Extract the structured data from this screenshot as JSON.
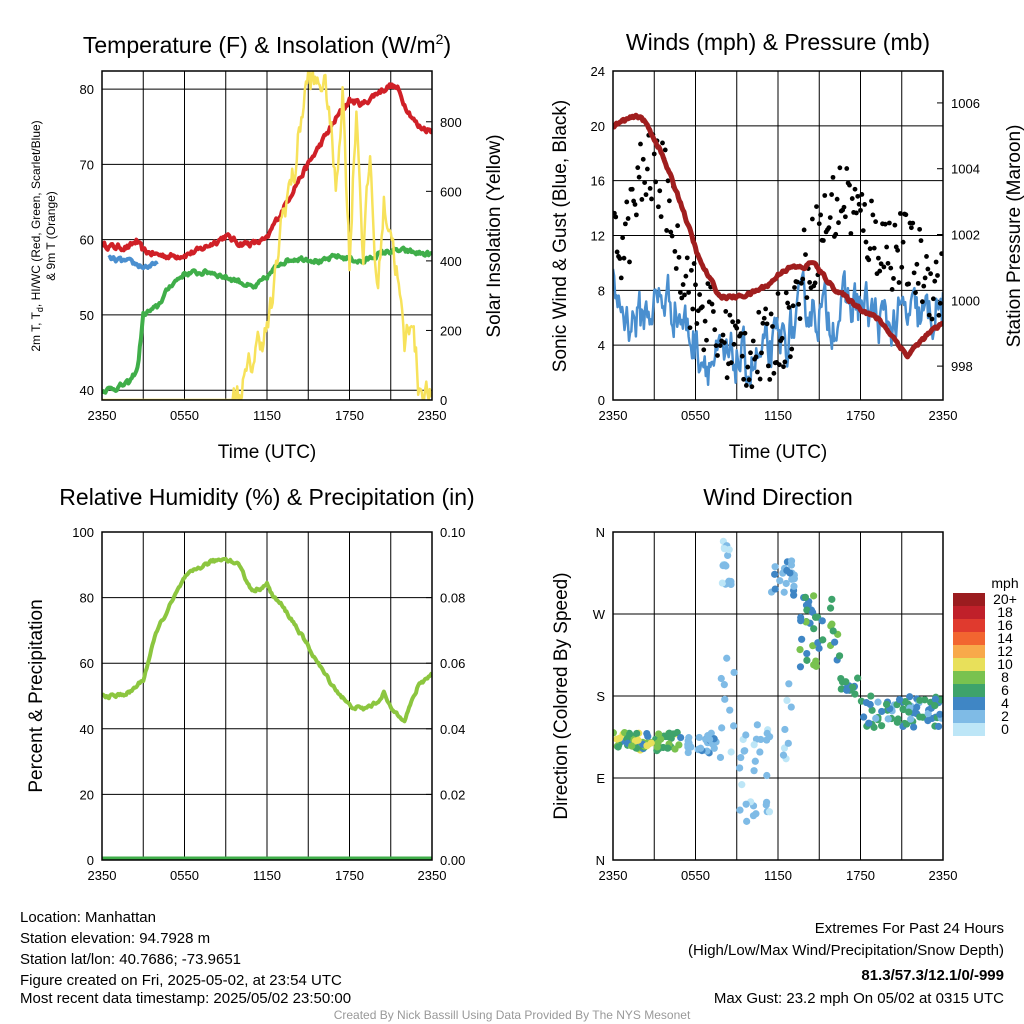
{
  "chart_data": [
    {
      "type": "line",
      "title": "Temperature (F) & Insolation (W/m",
      "title_sup": "2",
      "title_end": ")",
      "xlabel": "Time (UTC)",
      "ylabel_line1": "2m T, T",
      "ylabel_sub": "d",
      "ylabel_line1_end": ", HI/WC (Red, Green, Scarlet/Blue)",
      "ylabel_line2": "& 9m T (Orange)",
      "ylabel_right": "Solar Insolation (Yellow)",
      "xticks": [
        "2350",
        "0550",
        "1150",
        "1750",
        "2350"
      ],
      "ylim": [
        38.7,
        82.4
      ],
      "yticks": [
        40,
        50,
        60,
        70,
        80
      ],
      "ylim_right": [
        0,
        946
      ],
      "yticks_right": [
        0,
        200,
        400,
        600,
        800
      ],
      "series": [
        {
          "name": "2m T",
          "color": "#d02027",
          "axis": "left",
          "t": [
            0,
            1,
            2,
            2.5,
            3,
            4,
            5,
            6,
            7,
            8,
            9,
            9.5,
            10,
            11,
            12,
            12.5,
            13,
            14,
            15,
            16,
            17,
            18,
            19,
            20,
            21,
            21.5,
            22,
            23,
            24
          ],
          "v": [
            59.3,
            59,
            59,
            59.8,
            58.5,
            58,
            57.8,
            58,
            58.5,
            59.5,
            60.5,
            60,
            59.5,
            59.5,
            60,
            62,
            63.5,
            67,
            70,
            73,
            76,
            78.5,
            78,
            79.5,
            80.5,
            80,
            78,
            75,
            74.5
          ]
        },
        {
          "name": "Td",
          "color": "#3fae49",
          "axis": "left",
          "t": [
            0,
            1,
            2,
            2.6,
            3,
            4,
            5,
            6,
            7,
            8,
            9,
            10,
            11,
            12,
            13,
            14,
            15,
            16,
            17,
            18,
            19,
            20,
            21,
            22,
            23,
            24
          ],
          "v": [
            40,
            40.3,
            41,
            43,
            50,
            51,
            54,
            55.5,
            55.6,
            55.7,
            55,
            54.5,
            53.5,
            55,
            57,
            57.5,
            57.5,
            57,
            57.8,
            57.5,
            57,
            58,
            58.5,
            58.5,
            58.2,
            58
          ]
        },
        {
          "name": "HI/WC",
          "color": "#4a8fcf",
          "axis": "left",
          "t": [
            0.5,
            1,
            2,
            3,
            4
          ],
          "v": [
            57.5,
            57.3,
            57,
            56.4,
            56.6
          ]
        },
        {
          "name": "Solar Insolation",
          "color": "#f7e25b",
          "axis": "right",
          "t": [
            0,
            9.5,
            10,
            10.5,
            11,
            11.5,
            12,
            12.5,
            13,
            13.5,
            14,
            14.5,
            15,
            15.5,
            16,
            16.5,
            17,
            17.5,
            18,
            18.5,
            19,
            19.5,
            20,
            20.5,
            21,
            21.5,
            22,
            22.5,
            23,
            24
          ],
          "v": [
            0,
            0,
            20,
            60,
            120,
            180,
            200,
            300,
            500,
            600,
            650,
            820,
            930,
            900,
            920,
            850,
            600,
            900,
            400,
            850,
            420,
            700,
            300,
            560,
            500,
            350,
            150,
            260,
            50,
            0
          ]
        }
      ]
    },
    {
      "type": "line+scatter",
      "title": "Winds (mph) & Pressure (mb)",
      "xlabel": "Time (UTC)",
      "ylabel": "Sonic Wind & Gust (Blue, Black)",
      "ylabel_right": "Station Pressure (Maroon)",
      "xticks": [
        "2350",
        "0550",
        "1150",
        "1750",
        "2350"
      ],
      "ylim": [
        0,
        24
      ],
      "yticks": [
        0,
        4,
        8,
        12,
        16,
        20,
        24
      ],
      "ylim_right": [
        996.97,
        1006.97
      ],
      "yticks_right": [
        998,
        1000,
        1002,
        1004,
        1006
      ],
      "series": [
        {
          "name": "Sonic Wind",
          "color": "#4a8fcf",
          "axis": "left",
          "t": [
            0,
            1,
            2,
            3,
            4,
            5,
            6,
            7,
            8,
            9,
            10,
            11,
            12,
            13,
            14,
            15,
            16,
            17,
            18,
            19,
            20,
            21,
            22,
            23,
            24
          ],
          "v": [
            8,
            6,
            6,
            7,
            7.5,
            6,
            4,
            3,
            2.5,
            3,
            2.5,
            3,
            4,
            5,
            7,
            6.5,
            6,
            7,
            7,
            6,
            5.5,
            6,
            6,
            6,
            7
          ]
        },
        {
          "name": "Gust",
          "color": "#000000",
          "axis": "left",
          "type": "scatter",
          "t": [
            0,
            1,
            2,
            3,
            4,
            5,
            6,
            7,
            8,
            9,
            10,
            11,
            12,
            13,
            14,
            15,
            16,
            17,
            18,
            19,
            20,
            21,
            22,
            23,
            24
          ],
          "v": [
            11,
            12,
            16,
            17,
            15,
            10,
            7,
            6,
            4.5,
            4,
            3.5,
            3.5,
            5,
            6,
            10,
            12,
            14,
            15,
            13,
            12,
            11,
            11,
            10,
            9,
            8
          ]
        },
        {
          "name": "Station Pressure",
          "color": "#a01e1e",
          "axis": "right",
          "t": [
            0,
            1,
            2,
            2.5,
            3.4,
            4.9,
            6.3,
            7.8,
            9,
            10,
            11.4,
            12.3,
            13,
            14,
            14.5,
            15,
            16,
            17.2,
            18.2,
            19.4,
            20.9,
            21.4,
            22,
            23,
            24
          ],
          "v": [
            1005.3,
            1005.5,
            1005.6,
            1005.3,
            1004.6,
            1003,
            1001.2,
            1000.1,
            1000.1,
            1000.2,
            1000.5,
            1000.9,
            1001,
            1001,
            1001.2,
            1000.9,
            1000.4,
            1000,
            999.7,
            999.4,
            998.6,
            998.3,
            998.6,
            999,
            999.3
          ]
        }
      ]
    },
    {
      "type": "line",
      "title": "Relative Humidity (%) & Precipitation (in)",
      "ylabel": "Percent & Precipitation",
      "xticks": [
        "2350",
        "0550",
        "1150",
        "1750",
        "2350"
      ],
      "ylim": [
        0,
        100
      ],
      "yticks": [
        0,
        20,
        40,
        60,
        80,
        100
      ],
      "ylim_right": [
        0,
        0.1
      ],
      "yticks_right": [
        "0.00",
        "0.02",
        "0.04",
        "0.06",
        "0.08",
        "0.10"
      ],
      "series": [
        {
          "name": "Relative Humidity",
          "color": "#8cc63f",
          "axis": "left",
          "t": [
            0,
            1,
            2,
            3,
            4,
            5,
            6,
            7,
            8,
            9,
            10,
            10.5,
            11,
            12,
            12.5,
            13,
            14,
            15,
            16,
            17,
            18,
            19,
            20,
            20.5,
            21,
            22,
            22.5,
            23,
            24
          ],
          "v": [
            50,
            50,
            51,
            55,
            70,
            78,
            86,
            89,
            91,
            92,
            90,
            85,
            82,
            84,
            80,
            78,
            72,
            65,
            58,
            52,
            47,
            46,
            48,
            51,
            46,
            43,
            48,
            53,
            57
          ]
        },
        {
          "name": "Precipitation",
          "color": "#3fae49",
          "axis": "right",
          "t": [
            0,
            24
          ],
          "v": [
            0,
            0
          ]
        }
      ]
    },
    {
      "type": "scatter",
      "title": "Wind Direction",
      "ylabel": "Direction (Colored By Speed)",
      "xticks": [
        "2350",
        "0550",
        "1150",
        "1750",
        "2350"
      ],
      "ylim": [
        0,
        360
      ],
      "yticks": [
        "N",
        "E",
        "S",
        "W",
        "N"
      ],
      "colorbar": {
        "title": "mph",
        "labels": [
          "20+",
          "18",
          "16",
          "14",
          "12",
          "10",
          "8",
          "6",
          "4",
          "2",
          "0"
        ],
        "colors": [
          "#9b1c1f",
          "#c0202a",
          "#e03a2e",
          "#f26530",
          "#f8a94a",
          "#e8e05a",
          "#79c24f",
          "#3ea36b",
          "#3f86c5",
          "#7fbbe6",
          "#bde6f7"
        ]
      },
      "clusters": [
        {
          "t": [
            0,
            5
          ],
          "dir": [
            120,
            140
          ],
          "speed": [
            5,
            11
          ],
          "n": 70
        },
        {
          "t": [
            5.3,
            7.5
          ],
          "dir": [
            115,
            140
          ],
          "speed": [
            2,
            5
          ],
          "n": 30
        },
        {
          "t": [
            7.9,
            8.6
          ],
          "dir": [
            300,
            355
          ],
          "speed": [
            0,
            4
          ],
          "n": 16
        },
        {
          "t": [
            7.8,
            9
          ],
          "dir": [
            110,
            240
          ],
          "speed": [
            1,
            4
          ],
          "n": 10
        },
        {
          "t": [
            9.2,
            11.4
          ],
          "dir": [
            40,
            150
          ],
          "speed": [
            1,
            4
          ],
          "n": 30
        },
        {
          "t": [
            11.5,
            13.2
          ],
          "dir": [
            290,
            330
          ],
          "speed": [
            2,
            5
          ],
          "n": 22
        },
        {
          "t": [
            11.5,
            13
          ],
          "dir": [
            100,
            200
          ],
          "speed": [
            1,
            3
          ],
          "n": 8
        },
        {
          "t": [
            13.6,
            16.5
          ],
          "dir": [
            210,
            290
          ],
          "speed": [
            4,
            10
          ],
          "n": 40
        },
        {
          "t": [
            16.5,
            18
          ],
          "dir": [
            180,
            200
          ],
          "speed": [
            4,
            8
          ],
          "n": 14
        },
        {
          "t": [
            18,
            24
          ],
          "dir": [
            145,
            180
          ],
          "speed": [
            3,
            8
          ],
          "n": 70
        }
      ]
    }
  ],
  "footer": {
    "location": "Location: Manhattan",
    "elevation": "Station elevation: 94.7928 m",
    "latlon": "Station lat/lon: 40.7686; -73.9651",
    "created": "Figure created on Fri, 2025-05-02, at 23:54 UTC",
    "recent": "Most recent data timestamp: 2025/05/02 23:50:00",
    "extremes_title": "Extremes For Past 24 Hours",
    "extremes_sub": "(High/Low/Max Wind/Precipitation/Snow Depth)",
    "extremes_values": "81.3/57.3/12.1/0/-999",
    "max_gust": "Max Gust: 23.2 mph On 05/02 at 0315 UTC",
    "credit": "Created By Nick Bassill Using Data Provided By The NYS Mesonet",
    "extremes_color": "#c8202a",
    "credit_color": "#999999"
  }
}
